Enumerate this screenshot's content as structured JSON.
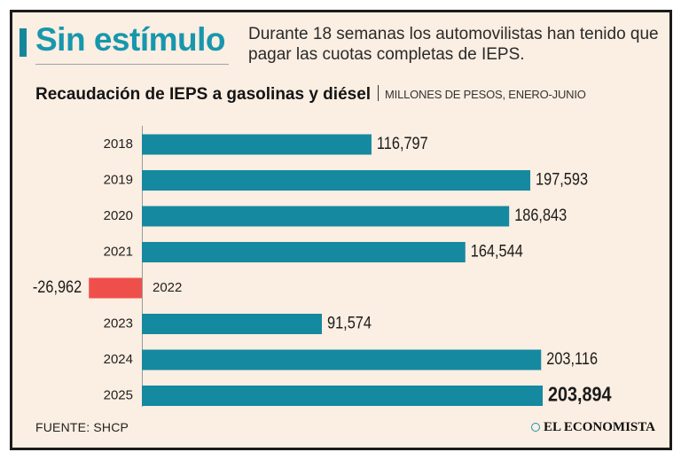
{
  "header": {
    "headline": "Sin estímulo",
    "dek": "Durante 18 semanas los automovilistas han tenido que pagar las cuotas completas de IEPS."
  },
  "chart_title": {
    "main": "Recaudación de IEPS a gasolinas y diésel",
    "sub": "MILLONES DE PESOS, ENERO-JUNIO"
  },
  "chart_data": {
    "type": "bar",
    "orientation": "horizontal",
    "title": "Recaudación de IEPS a gasolinas y diésel",
    "subtitle": "MILLONES DE PESOS, ENERO-JUNIO",
    "categories": [
      "2018",
      "2019",
      "2020",
      "2021",
      "2022",
      "2023",
      "2024",
      "2025"
    ],
    "values": [
      116797,
      197593,
      186843,
      164544,
      -26962,
      91574,
      203116,
      203894
    ],
    "value_labels": [
      "116,797",
      "197,593",
      "186,843",
      "164,544",
      "-26,962",
      "91,574",
      "203,116",
      "203,894"
    ],
    "xlim": [
      -26962,
      203894
    ],
    "highlight_category": "2025",
    "grid": false,
    "colors": {
      "positive": "#1589a0",
      "negative": "#ee4f4b"
    }
  },
  "footer": {
    "source": "FUENTE: SHCP",
    "brand": "EL ECONOMISTA"
  },
  "icons": {
    "brand_logo": "circle-mark-icon"
  }
}
